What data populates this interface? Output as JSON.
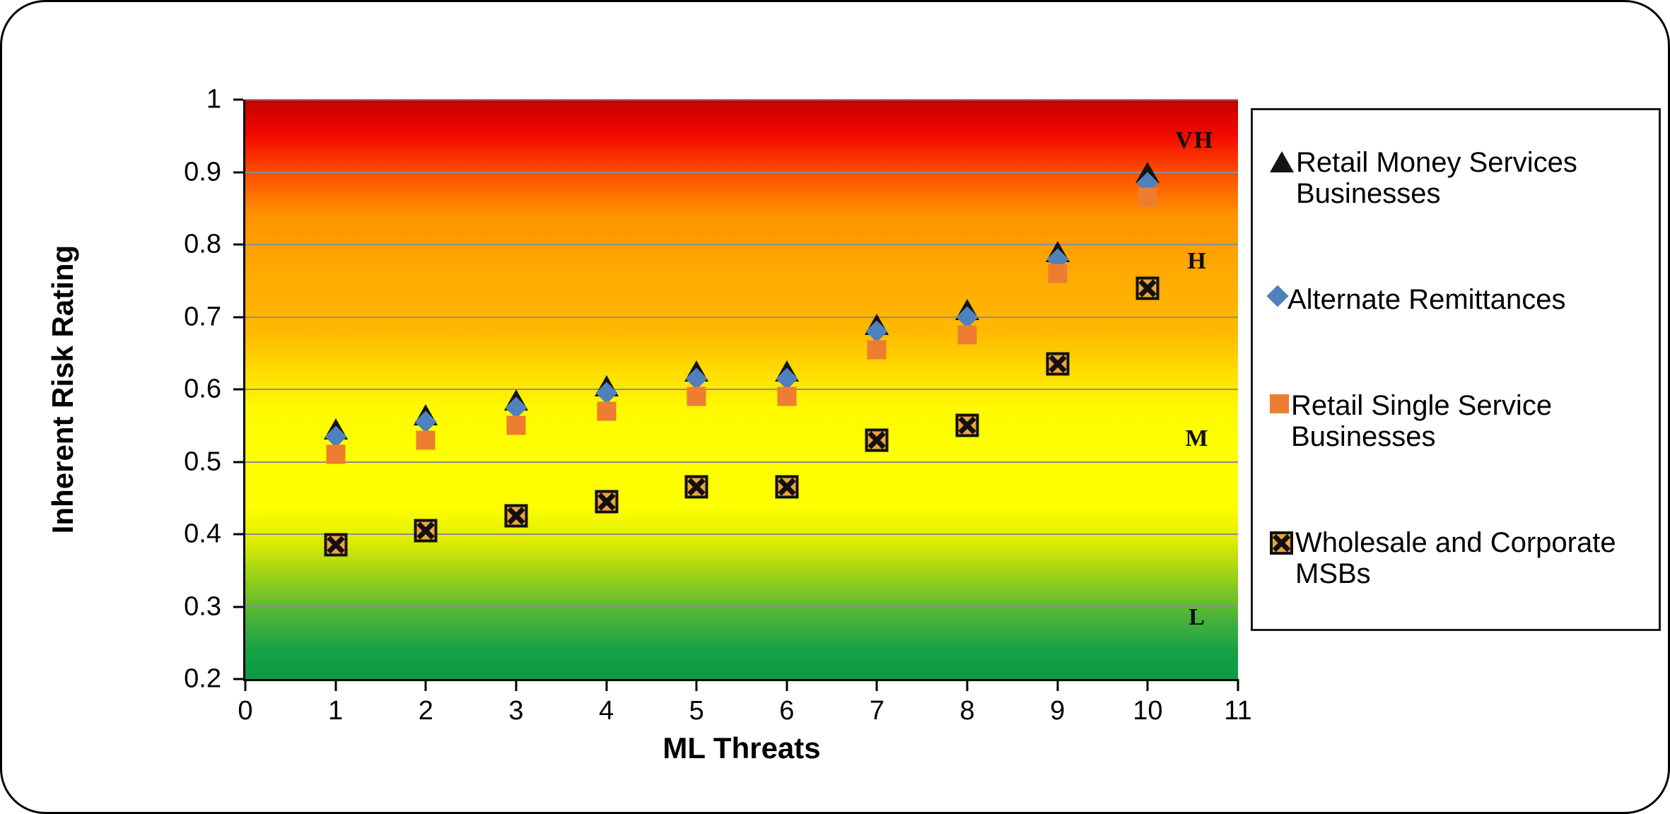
{
  "chart_data": {
    "type": "scatter",
    "title": "",
    "xlabel": "ML Threats",
    "ylabel": "Inherent Risk Rating",
    "xlim": [
      0,
      11
    ],
    "ylim": [
      0.2,
      1
    ],
    "grid": true,
    "legend_position": "right",
    "x_ticks": [
      {
        "v": 0,
        "label": "0"
      },
      {
        "v": 1,
        "label": "1"
      },
      {
        "v": 2,
        "label": "2"
      },
      {
        "v": 3,
        "label": "3"
      },
      {
        "v": 4,
        "label": "4"
      },
      {
        "v": 5,
        "label": "5"
      },
      {
        "v": 6,
        "label": "6"
      },
      {
        "v": 7,
        "label": "7"
      },
      {
        "v": 8,
        "label": "8"
      },
      {
        "v": 9,
        "label": "9"
      },
      {
        "v": 10,
        "label": "10"
      },
      {
        "v": 11,
        "label": "11"
      }
    ],
    "y_ticks": [
      {
        "v": 1,
        "label": "1"
      },
      {
        "v": 0.9,
        "label": "0.9"
      },
      {
        "v": 0.8,
        "label": "0.8"
      },
      {
        "v": 0.7,
        "label": "0.7"
      },
      {
        "v": 0.6,
        "label": "0.6"
      },
      {
        "v": 0.5,
        "label": "0.5"
      },
      {
        "v": 0.4,
        "label": "0.4"
      },
      {
        "v": 0.3,
        "label": "0.3"
      },
      {
        "v": 0.2,
        "label": "0.2"
      }
    ],
    "gridline_values": [
      1,
      0.9,
      0.8,
      0.7,
      0.6,
      0.5,
      0.4,
      0.3
    ],
    "x": [
      1,
      2,
      3,
      4,
      5,
      6,
      7,
      8,
      9,
      10
    ],
    "series": [
      {
        "name": "Retail Money Services Businesses",
        "marker": "triangle",
        "color": "#141414",
        "values": [
          0.545,
          0.565,
          0.585,
          0.605,
          0.625,
          0.625,
          0.69,
          0.71,
          0.79,
          0.9
        ]
      },
      {
        "name": "Alternate Remittances",
        "marker": "diamond",
        "color": "#4F81BD",
        "values": [
          0.535,
          0.555,
          0.575,
          0.595,
          0.615,
          0.615,
          0.68,
          0.7,
          0.78,
          0.885
        ]
      },
      {
        "name": "Retail Single Service Businesses",
        "marker": "square",
        "color": "#ED7D31",
        "values": [
          0.51,
          0.53,
          0.55,
          0.57,
          0.59,
          0.59,
          0.655,
          0.675,
          0.76,
          0.865
        ]
      },
      {
        "name": "Wholesale and Corporate MSBs",
        "marker": "square-x",
        "color": "#F2A13C",
        "line_color": "#111111",
        "values": [
          0.385,
          0.405,
          0.425,
          0.445,
          0.465,
          0.465,
          0.53,
          0.55,
          0.635,
          0.74
        ]
      }
    ],
    "risk_zone_labels": [
      {
        "label": "VH",
        "x": 10.52,
        "y": 0.943
      },
      {
        "label": "H",
        "x": 10.55,
        "y": 0.777
      },
      {
        "label": "M",
        "x": 10.55,
        "y": 0.532
      },
      {
        "label": "L",
        "x": 10.55,
        "y": 0.285
      }
    ],
    "risk_band_colors": {
      "very_high": "#F00000",
      "high": "#FFA500",
      "medium": "#FFFF00",
      "low": "#12A24A"
    }
  }
}
